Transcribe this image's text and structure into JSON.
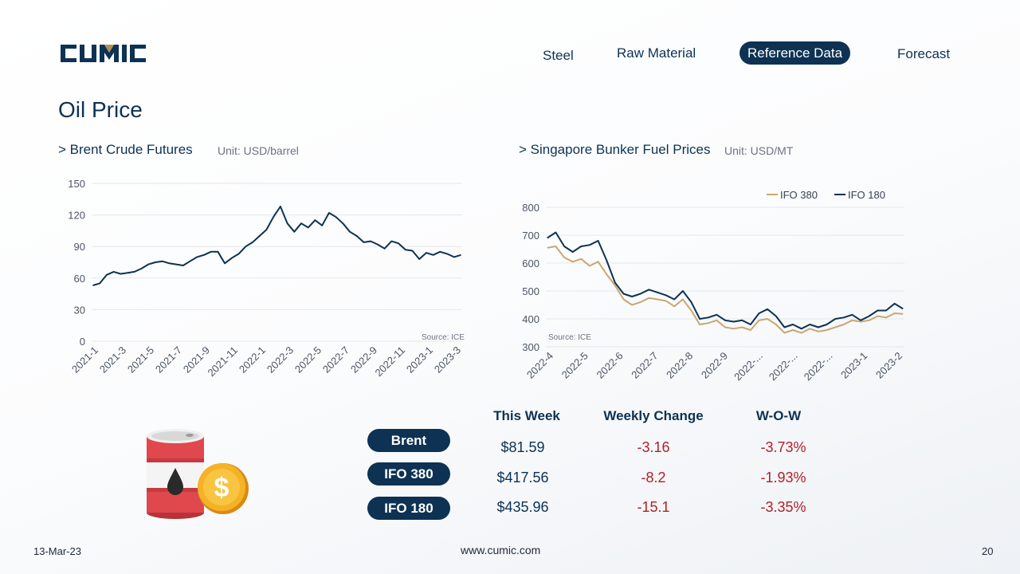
{
  "brand": {
    "logo_text": "CUMIC",
    "accent": "#b08d57",
    "navy": "#0d3253"
  },
  "nav": {
    "items": [
      {
        "label": "Steel"
      },
      {
        "label": "Raw Material"
      },
      {
        "label": "Reference Data",
        "active": true
      },
      {
        "label": "Forecast"
      }
    ]
  },
  "page": {
    "title": "Oil Price"
  },
  "brent_section": {
    "title": "> Brent Crude Futures",
    "unit": "Unit: USD/barrel",
    "source": "Source: ICE"
  },
  "bunker_section": {
    "title": "> Singapore Bunker Fuel Prices",
    "unit": "Unit: USD/MT",
    "source": "Source: ICE"
  },
  "chart_data": [
    {
      "type": "line",
      "title": "",
      "ylim": [
        0,
        150
      ],
      "yticks": [
        0,
        30,
        60,
        90,
        120,
        150
      ],
      "x_labels": [
        "2021-1",
        "2021-3",
        "2021-5",
        "2021-7",
        "2021-9",
        "2021-11",
        "2022-1",
        "2022-3",
        "2022-5",
        "2022-7",
        "2022-9",
        "2022-11",
        "2023-1",
        "2023-3"
      ],
      "grid": true,
      "series": [
        {
          "values": [
            53,
            55,
            63,
            66,
            64,
            65,
            66,
            69,
            73,
            75,
            76,
            74,
            73,
            72,
            76,
            80,
            82,
            85,
            85,
            74,
            79,
            83,
            90,
            94,
            100,
            106,
            118,
            128,
            112,
            104,
            112,
            108,
            115,
            110,
            122,
            118,
            112,
            104,
            100,
            94,
            95,
            92,
            88,
            95,
            93,
            87,
            86,
            78,
            84,
            82,
            85,
            83,
            80,
            82
          ],
          "color": "#0d3253"
        }
      ]
    },
    {
      "type": "line",
      "title": "",
      "ylim": [
        300,
        800
      ],
      "yticks": [
        300,
        400,
        500,
        600,
        700,
        800
      ],
      "x_labels": [
        "2022-4",
        "2022-5",
        "2022-6",
        "2022-7",
        "2022-8",
        "2022-9",
        "2022-...",
        "2022-...",
        "2022-...",
        "2023-1",
        "2023-2"
      ],
      "grid": true,
      "legend": "top-right",
      "series": [
        {
          "name": "IFO 380",
          "color": "#c9a773",
          "values": [
            655,
            660,
            620,
            605,
            615,
            590,
            605,
            560,
            520,
            470,
            450,
            460,
            475,
            470,
            465,
            445,
            470,
            430,
            380,
            385,
            395,
            370,
            365,
            370,
            360,
            395,
            400,
            380,
            350,
            360,
            350,
            365,
            355,
            360,
            370,
            380,
            395,
            390,
            395,
            410,
            405,
            420,
            418
          ]
        },
        {
          "name": "IFO 180",
          "color": "#0d3253",
          "values": [
            690,
            710,
            660,
            640,
            660,
            665,
            680,
            610,
            530,
            490,
            480,
            490,
            505,
            495,
            485,
            470,
            500,
            460,
            400,
            405,
            415,
            395,
            390,
            395,
            380,
            420,
            435,
            410,
            370,
            380,
            365,
            380,
            370,
            380,
            400,
            405,
            415,
            395,
            410,
            430,
            430,
            455,
            436
          ]
        }
      ]
    }
  ],
  "table": {
    "headers": [
      "This Week",
      "Weekly Change",
      "W-O-W"
    ],
    "rows": [
      {
        "name": "Brent",
        "this_week": "$81.59",
        "weekly_change": "-3.16",
        "wow": "-3.73%"
      },
      {
        "name": "IFO 380",
        "this_week": "$417.56",
        "weekly_change": "-8.2",
        "wow": "-1.93%"
      },
      {
        "name": "IFO 180",
        "this_week": "$435.96",
        "weekly_change": "-15.1",
        "wow": "-3.35%"
      }
    ]
  },
  "footer": {
    "date": "13-Mar-23",
    "website": "www.cumic.com",
    "page_number": "20"
  }
}
